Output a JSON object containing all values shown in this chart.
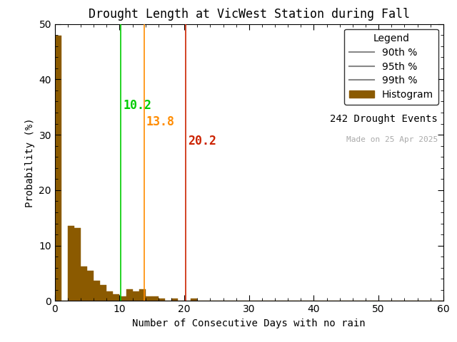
{
  "title": "Drought Length at VicWest Station during Fall",
  "xlabel": "Number of Consecutive Days with no rain",
  "ylabel": "Probability (%)",
  "xlim": [
    0,
    60
  ],
  "ylim": [
    0,
    50
  ],
  "xticks": [
    0,
    10,
    20,
    30,
    40,
    50,
    60
  ],
  "yticks": [
    0,
    10,
    20,
    30,
    40,
    50
  ],
  "bar_color": "#8B5A00",
  "bar_edgecolor": "#8B5A00",
  "percentile_90": 10.2,
  "percentile_95": 13.8,
  "percentile_99": 20.2,
  "color_90": "#00CC00",
  "color_95": "#FF8C00",
  "color_99": "#CC2200",
  "legend_line_color": "#888888",
  "n_events": 242,
  "made_on": "Made on 25 Apr 2025",
  "legend_title": "Legend",
  "bar_heights": [
    47.9,
    0.0,
    13.6,
    13.2,
    6.2,
    5.4,
    3.7,
    2.9,
    1.7,
    1.2,
    0.8,
    2.1,
    1.7,
    2.1,
    0.8,
    0.8,
    0.4,
    0.0,
    0.4,
    0.0,
    0.0,
    0.4,
    0.0,
    0.0,
    0.0,
    0.0,
    0.0,
    0.0,
    0.0,
    0.0,
    0.0,
    0.0,
    0.0,
    0.0,
    0.0,
    0.0,
    0.0,
    0.0,
    0.0,
    0.0,
    0.0,
    0.0,
    0.0,
    0.0,
    0.0,
    0.0,
    0.0,
    0.0,
    0.0,
    0.0,
    0.0,
    0.0,
    0.0,
    0.0,
    0.0,
    0.0,
    0.0,
    0.0,
    0.0,
    0.0
  ],
  "bin_width": 1,
  "title_fontsize": 12,
  "label_fontsize": 10,
  "tick_fontsize": 10,
  "legend_fontsize": 10,
  "annot_fontsize": 12,
  "background_color": "#ffffff"
}
